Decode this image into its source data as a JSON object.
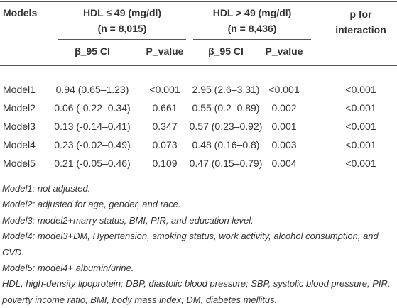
{
  "table": {
    "headers": {
      "models": "Models",
      "group1": "HDL ≤ 49 (mg/dl)",
      "group1_n": "(n = 8,015)",
      "group2": "HDL > 49 (mg/dl)",
      "group2_n": "(n = 8,436)",
      "interaction": "p for interaction"
    },
    "subheaders": [
      "β_95 CI",
      "P_value",
      "β_95 CI",
      "P_value"
    ],
    "rows": [
      [
        "Model1",
        "0.94 (0.65–1.23)",
        "<0.001",
        "2.95 (2.6–3.31)",
        "<0.001",
        "<0.001"
      ],
      [
        "Model2",
        "0.06 (-0.22–0.34)",
        "0.661",
        "0.55 (0.2–0.89)",
        "0.002",
        "<0.001"
      ],
      [
        "Model3",
        "0.13 (-0.14–0.41)",
        "0.347",
        "0.57 (0.23–0.92)",
        "0.001",
        "<0.001"
      ],
      [
        "Model4",
        "0.23 (-0.02–0.49)",
        "0.073",
        "0.48 (0.16–0.8)",
        "0.003",
        "<0.001"
      ],
      [
        "Model5",
        "0.21 (-0.05–0.46)",
        "0.109",
        "0.47 (0.15–0.79)",
        "0.004",
        "<0.001"
      ]
    ]
  },
  "footnotes": [
    "Model1: not adjusted.",
    "Model2: adjusted for age, gender, and race.",
    "Model3: model2+marry status, BMI, PIR, and education level.",
    "Model4: model3+DM, Hypertension, smoking status, work activity, alcohol consumption, and CVD.",
    "Model5: model4+ albumin/urine.",
    "HDL, high-density lipoprotein; DBP, diastolic blood pressure; SBP, systolic blood pressure; PIR, poverty income ratio; BMI, body mass index; DM, diabetes mellitus."
  ]
}
